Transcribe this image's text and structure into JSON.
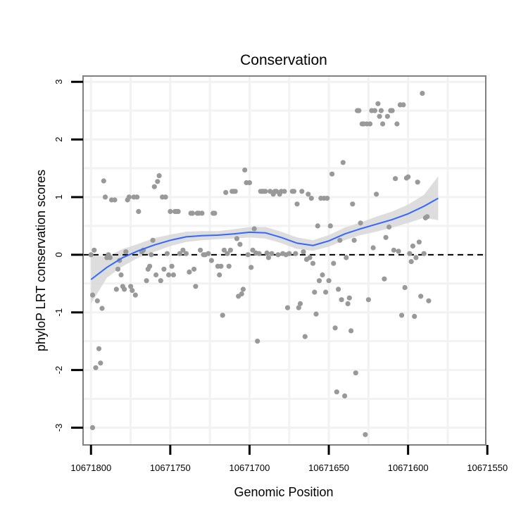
{
  "chart_data": {
    "type": "scatter",
    "title": "Conservation",
    "xlabel": "Genomic Position",
    "ylabel": "phyloP LRT conservation scores",
    "xlim": [
      10671551,
      10671805
    ],
    "x_reversed": true,
    "ylim": [
      -3.3,
      3.1
    ],
    "x_ticks": [
      10671800,
      10671750,
      10671700,
      10671650,
      10671600,
      10671550
    ],
    "x_tick_labels": [
      "10671800",
      "10671750",
      "10671700",
      "10671650",
      "10671600",
      "10671550"
    ],
    "y_ticks": [
      -3,
      -2,
      -1,
      0,
      1,
      2,
      3
    ],
    "y_tick_labels": [
      "-3",
      "-2",
      "-1",
      "0",
      "1",
      "2",
      "3"
    ],
    "reference_line_y": 0,
    "grid": true,
    "colors": {
      "points": "#999999",
      "smooth_line": "#3366ff",
      "confidence_band": "#d9d9d9",
      "grid": "#f2f2f2",
      "border": "#808080"
    },
    "series": [
      {
        "name": "phyloP scores",
        "points": [
          [
            10671800,
            0.0
          ],
          [
            10671799,
            -0.7
          ],
          [
            10671799,
            -3.0
          ],
          [
            10671798,
            0.08
          ],
          [
            10671797,
            -1.96
          ],
          [
            10671796,
            -0.8
          ],
          [
            10671795,
            -1.63
          ],
          [
            10671794,
            -1.88
          ],
          [
            10671793,
            -0.93
          ],
          [
            10671792,
            1.28
          ],
          [
            10671791,
            1.0
          ],
          [
            10671790,
            -0.05
          ],
          [
            10671789,
            0.0
          ],
          [
            10671788,
            -0.05
          ],
          [
            10671787,
            0.95
          ],
          [
            10671785,
            0.95
          ],
          [
            10671784,
            -0.6
          ],
          [
            10671783,
            -0.25
          ],
          [
            10671782,
            -0.1
          ],
          [
            10671781,
            -0.35
          ],
          [
            10671780,
            -0.55
          ],
          [
            10671779,
            -0.6
          ],
          [
            10671778,
            0.05
          ],
          [
            10671777,
            0.95
          ],
          [
            10671776,
            1.0
          ],
          [
            10671775,
            -0.55
          ],
          [
            10671774,
            -0.62
          ],
          [
            10671773,
            1.0
          ],
          [
            10671772,
            -0.7
          ],
          [
            10671771,
            1.0
          ],
          [
            10671770,
            0.75
          ],
          [
            10671768,
            0.05
          ],
          [
            10671767,
            0.08
          ],
          [
            10671765,
            -0.45
          ],
          [
            10671764,
            -0.25
          ],
          [
            10671763,
            -0.2
          ],
          [
            10671762,
            0.0
          ],
          [
            10671761,
            0.25
          ],
          [
            10671760,
            1.18
          ],
          [
            10671759,
            -0.35
          ],
          [
            10671758,
            1.27
          ],
          [
            10671757,
            1.37
          ],
          [
            10671756,
            -0.45
          ],
          [
            10671755,
            1.0
          ],
          [
            10671754,
            -0.25
          ],
          [
            10671753,
            1.0
          ],
          [
            10671752,
            0.02
          ],
          [
            10671751,
            -0.35
          ],
          [
            10671750,
            0.75
          ],
          [
            10671749,
            -0.2
          ],
          [
            10671748,
            -0.35
          ],
          [
            10671747,
            0.75
          ],
          [
            10671746,
            0.75
          ],
          [
            10671745,
            0.75
          ],
          [
            10671744,
            0.02
          ],
          [
            10671742,
            0.08
          ],
          [
            10671740,
            0.02
          ],
          [
            10671738,
            -0.3
          ],
          [
            10671737,
            0.72
          ],
          [
            10671736,
            0.72
          ],
          [
            10671735,
            -0.25
          ],
          [
            10671734,
            -0.55
          ],
          [
            10671733,
            0.72
          ],
          [
            10671732,
            0.72
          ],
          [
            10671731,
            0.08
          ],
          [
            10671730,
            0.72
          ],
          [
            10671729,
            0.0
          ],
          [
            10671728,
            0.0
          ],
          [
            10671726,
            0.02
          ],
          [
            10671724,
            -0.1
          ],
          [
            10671723,
            0.72
          ],
          [
            10671722,
            0.72
          ],
          [
            10671720,
            -0.2
          ],
          [
            10671719,
            -0.35
          ],
          [
            10671718,
            -0.2
          ],
          [
            10671717,
            -1.05
          ],
          [
            10671716,
            0.08
          ],
          [
            10671715,
            1.08
          ],
          [
            10671714,
            0.02
          ],
          [
            10671713,
            -0.2
          ],
          [
            10671712,
            0.08
          ],
          [
            10671711,
            1.1
          ],
          [
            10671710,
            1.1
          ],
          [
            10671709,
            1.1
          ],
          [
            10671708,
            0.28
          ],
          [
            10671707,
            -0.72
          ],
          [
            10671706,
            0.18
          ],
          [
            10671705,
            -0.68
          ],
          [
            10671704,
            -0.6
          ],
          [
            10671703,
            1.47
          ],
          [
            10671702,
            1.25
          ],
          [
            10671701,
            0.0
          ],
          [
            10671700,
            1.25
          ],
          [
            10671699,
            -0.22
          ],
          [
            10671698,
            0.08
          ],
          [
            10671697,
            0.45
          ],
          [
            10671696,
            0.03
          ],
          [
            10671695,
            -1.5
          ],
          [
            10671694,
            0.02
          ],
          [
            10671693,
            1.1
          ],
          [
            10671692,
            1.1
          ],
          [
            10671691,
            1.1
          ],
          [
            10671690,
            1.1
          ],
          [
            10671689,
            0.03
          ],
          [
            10671688,
            -0.05
          ],
          [
            10671687,
            1.1
          ],
          [
            10671686,
            0.02
          ],
          [
            10671685,
            1.05
          ],
          [
            10671684,
            1.1
          ],
          [
            10671683,
            1.1
          ],
          [
            10671682,
            0.0
          ],
          [
            10671681,
            1.05
          ],
          [
            10671680,
            1.1
          ],
          [
            10671679,
            0.02
          ],
          [
            10671678,
            1.1
          ],
          [
            10671677,
            0.0
          ],
          [
            10671676,
            -0.92
          ],
          [
            10671675,
            0.02
          ],
          [
            10671673,
            1.1
          ],
          [
            10671672,
            1.1
          ],
          [
            10671671,
            0.02
          ],
          [
            10671670,
            0.88
          ],
          [
            10671669,
            -0.92
          ],
          [
            10671668,
            -0.85
          ],
          [
            10671667,
            1.1
          ],
          [
            10671666,
            0.05
          ],
          [
            10671665,
            -1.42
          ],
          [
            10671664,
            -0.08
          ],
          [
            10671663,
            1.05
          ],
          [
            10671662,
            -0.05
          ],
          [
            10671661,
            0.98
          ],
          [
            10671660,
            -0.15
          ],
          [
            10671659,
            -0.65
          ],
          [
            10671658,
            -1.03
          ],
          [
            10671657,
            0.5
          ],
          [
            10671656,
            -0.45
          ],
          [
            10671655,
            0.98
          ],
          [
            10671654,
            -0.35
          ],
          [
            10671653,
            0.98
          ],
          [
            10671652,
            -0.65
          ],
          [
            10671651,
            0.98
          ],
          [
            10671650,
            -0.45
          ],
          [
            10671649,
            0.5
          ],
          [
            10671648,
            1.4
          ],
          [
            10671647,
            -0.15
          ],
          [
            10671646,
            -1.27
          ],
          [
            10671645,
            -2.38
          ],
          [
            10671644,
            -0.6
          ],
          [
            10671643,
            0.25
          ],
          [
            10671642,
            -0.78
          ],
          [
            10671641,
            1.6
          ],
          [
            10671640,
            -2.45
          ],
          [
            10671639,
            -0.05
          ],
          [
            10671638,
            -0.85
          ],
          [
            10671637,
            -0.75
          ],
          [
            10671636,
            -1.32
          ],
          [
            10671635,
            0.88
          ],
          [
            10671634,
            0.25
          ],
          [
            10671633,
            -2.05
          ],
          [
            10671632,
            2.5
          ],
          [
            10671631,
            2.5
          ],
          [
            10671630,
            0.55
          ],
          [
            10671629,
            2.27
          ],
          [
            10671628,
            2.27
          ],
          [
            10671627,
            -3.12
          ],
          [
            10671626,
            2.27
          ],
          [
            10671625,
            -0.78
          ],
          [
            10671624,
            2.27
          ],
          [
            10671623,
            2.5
          ],
          [
            10671622,
            0.12
          ],
          [
            10671621,
            2.5
          ],
          [
            10671620,
            1.05
          ],
          [
            10671619,
            2.62
          ],
          [
            10671618,
            2.4
          ],
          [
            10671617,
            2.5
          ],
          [
            10671616,
            2.27
          ],
          [
            10671615,
            -0.42
          ],
          [
            10671614,
            0.3
          ],
          [
            10671613,
            2.4
          ],
          [
            10671612,
            0.48
          ],
          [
            10671611,
            2.5
          ],
          [
            10671610,
            2.5
          ],
          [
            10671609,
            0.08
          ],
          [
            10671608,
            1.32
          ],
          [
            10671607,
            2.27
          ],
          [
            10671606,
            0.06
          ],
          [
            10671605,
            2.6
          ],
          [
            10671604,
            -1.05
          ],
          [
            10671603,
            2.6
          ],
          [
            10671602,
            -0.57
          ],
          [
            10671601,
            1.33
          ],
          [
            10671600,
            1.35
          ],
          [
            10671599,
            0.02
          ],
          [
            10671598,
            -0.12
          ],
          [
            10671597,
            0.15
          ],
          [
            10671596,
            -1.07
          ],
          [
            10671595,
            -0.05
          ],
          [
            10671594,
            1.26
          ],
          [
            10671593,
            0.22
          ],
          [
            10671592,
            -0.72
          ],
          [
            10671591,
            2.8
          ],
          [
            10671590,
            0.02
          ],
          [
            10671589,
            0.64
          ],
          [
            10671588,
            0.66
          ],
          [
            10671587,
            -0.8
          ]
        ]
      }
    ],
    "smooth": {
      "name": "loess fit",
      "x": [
        10671800,
        10671790,
        10671780,
        10671770,
        10671760,
        10671750,
        10671740,
        10671730,
        10671720,
        10671710,
        10671700,
        10671690,
        10671680,
        10671670,
        10671660,
        10671650,
        10671640,
        10671630,
        10671620,
        10671610,
        10671600,
        10671590,
        10671581
      ],
      "y": [
        -0.43,
        -0.22,
        -0.05,
        0.07,
        0.17,
        0.25,
        0.31,
        0.33,
        0.34,
        0.36,
        0.39,
        0.38,
        0.3,
        0.2,
        0.16,
        0.24,
        0.36,
        0.45,
        0.53,
        0.61,
        0.71,
        0.84,
        0.98
      ],
      "lower": [
        -0.85,
        -0.4,
        -0.2,
        -0.05,
        0.05,
        0.15,
        0.22,
        0.25,
        0.27,
        0.28,
        0.3,
        0.28,
        0.2,
        0.1,
        0.07,
        0.14,
        0.25,
        0.34,
        0.4,
        0.47,
        0.55,
        0.64,
        0.6
      ],
      "upper": [
        -0.0,
        -0.04,
        0.1,
        0.19,
        0.29,
        0.35,
        0.4,
        0.41,
        0.41,
        0.44,
        0.48,
        0.48,
        0.4,
        0.3,
        0.25,
        0.34,
        0.47,
        0.56,
        0.66,
        0.75,
        0.87,
        1.04,
        1.36
      ]
    }
  }
}
